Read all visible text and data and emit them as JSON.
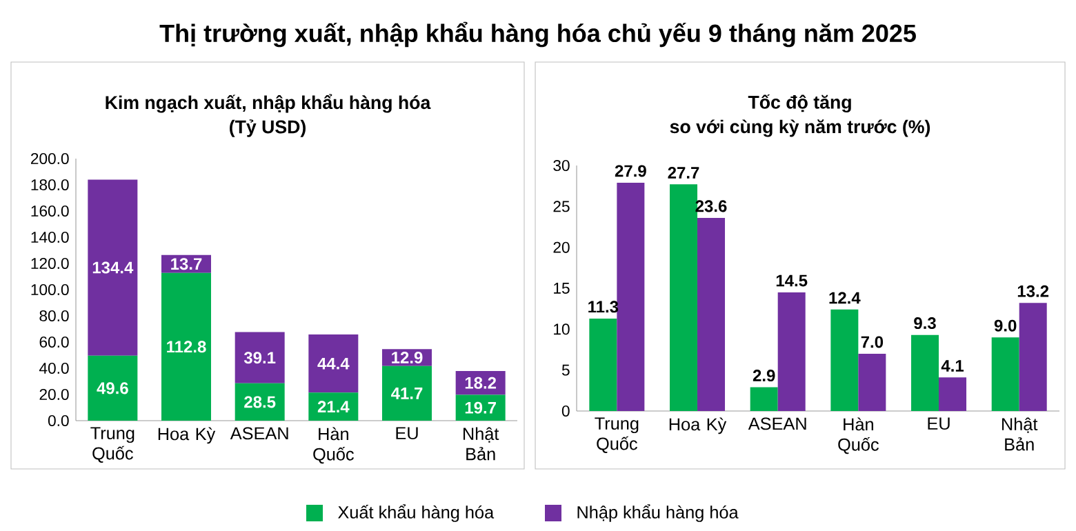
{
  "chart_data": [
    {
      "type": "bar",
      "stacked": true,
      "title": "Thị trường xuất, nhập khẩu hàng hóa chủ yếu 9 tháng năm 2025",
      "subtitle": "Kim ngạch xuất, nhập khẩu hàng hóa",
      "ylabel": "(Tỷ USD)",
      "legend": "bottom",
      "categories": [
        "Trung Quốc",
        "Hoa Kỳ",
        "ASEAN",
        "Hàn Quốc",
        "EU",
        "Nhật Bản"
      ],
      "ylim": [
        0,
        200
      ],
      "yticks": [
        {
          "value": 0,
          "label": "0.0"
        },
        {
          "value": 20,
          "label": "20.0"
        },
        {
          "value": 40,
          "label": "40.0"
        },
        {
          "value": 60,
          "label": "60.0"
        },
        {
          "value": 80,
          "label": "80.0"
        },
        {
          "value": 100,
          "label": "100.0"
        },
        {
          "value": 120,
          "label": "120.0"
        },
        {
          "value": 140,
          "label": "140.0"
        },
        {
          "value": 160,
          "label": "160.0"
        },
        {
          "value": 180,
          "label": "180.0"
        },
        {
          "value": 200,
          "label": "200.0"
        }
      ],
      "series": [
        {
          "name": "Xuất khẩu hàng hóa",
          "color": "#00b050",
          "values": [
            49.6,
            112.8,
            28.5,
            21.4,
            41.7,
            19.7
          ],
          "value_labels": [
            "49.6",
            "112.8",
            "28.5",
            "21.4",
            "41.7",
            "19.7"
          ]
        },
        {
          "name": "Nhập khẩu hàng hóa",
          "color": "#7030a0",
          "values": [
            134.4,
            13.7,
            39.1,
            44.4,
            12.9,
            18.2
          ],
          "value_labels": [
            "134.4",
            "13.7",
            "39.1",
            "44.4",
            "12.9",
            "18.2"
          ]
        }
      ]
    },
    {
      "type": "bar",
      "title": "Tốc độ tăng",
      "subtitle": "so với cùng kỳ năm trước (%)",
      "categories": [
        "Trung Quốc",
        "Hoa Kỳ",
        "ASEAN",
        "Hàn Quốc",
        "EU",
        "Nhật Bản"
      ],
      "ylim": [
        0,
        30
      ],
      "yticks": [
        0,
        5,
        10,
        15,
        20,
        25,
        30
      ],
      "series": [
        {
          "color": "#00b050",
          "values": [
            11.3,
            27.7,
            2.9,
            12.4,
            9.3,
            9.0
          ],
          "value_labels": [
            "11.3",
            "27.7",
            "2.9",
            "12.4",
            "9.3",
            "9.0"
          ]
        },
        {
          "color": "#7030a0",
          "values": [
            27.9,
            23.6,
            14.5,
            7.0,
            4.1,
            13.2
          ],
          "value_labels": [
            "27.9",
            "23.6",
            "14.5",
            "7.0",
            "4.1",
            "13.2"
          ]
        }
      ]
    }
  ]
}
